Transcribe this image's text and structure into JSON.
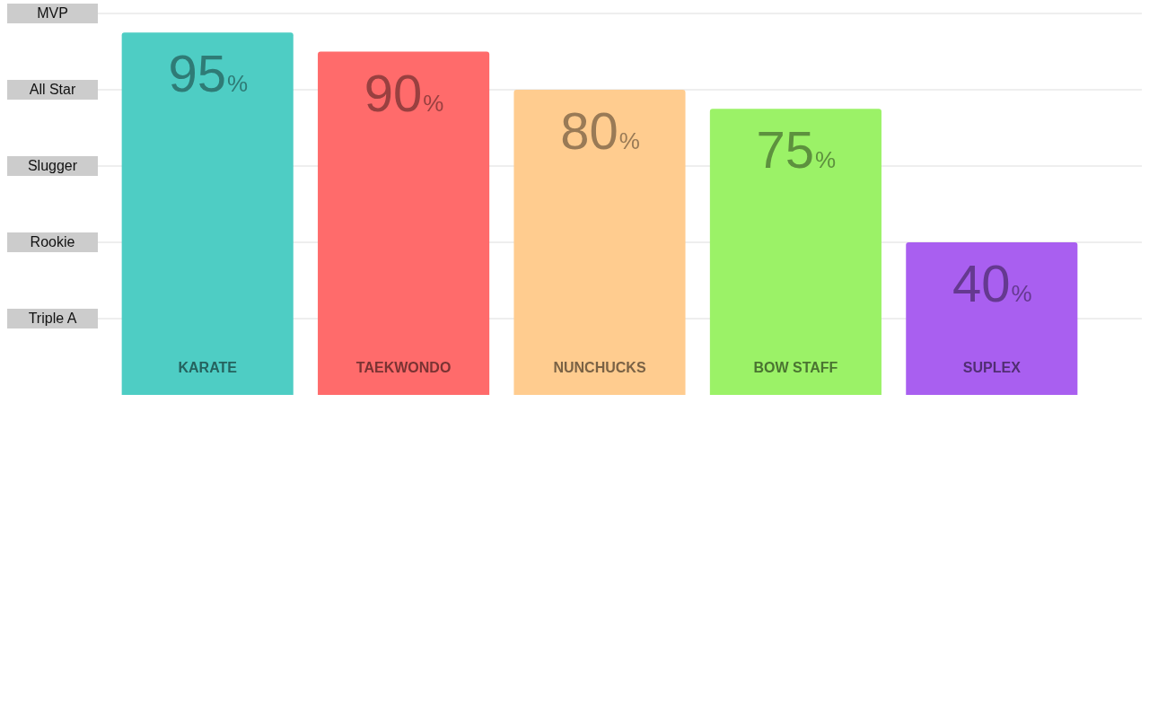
{
  "chart_data": {
    "type": "bar",
    "categories": [
      "KARATE",
      "TAEKWONDO",
      "NUNCHUCKS",
      "BOW STAFF",
      "SUPLEX"
    ],
    "values": [
      95,
      90,
      80,
      75,
      40
    ],
    "colors": [
      "#4ecdc4",
      "#ff6b6b",
      "#ffcc8f",
      "#9bf267",
      "#a95ff0"
    ],
    "value_labels": [
      "95%",
      "90%",
      "80%",
      "75%",
      "40%"
    ],
    "ylim": [
      0,
      100
    ],
    "ref_lines": [
      {
        "axis": "y",
        "value": 100,
        "label": "MVP"
      },
      {
        "axis": "y",
        "value": 80,
        "label": "All Star"
      },
      {
        "axis": "y",
        "value": 60,
        "label": "Slugger"
      },
      {
        "axis": "y",
        "value": 40,
        "label": "Rookie"
      },
      {
        "axis": "y",
        "value": 20,
        "label": "Triple A"
      }
    ]
  }
}
